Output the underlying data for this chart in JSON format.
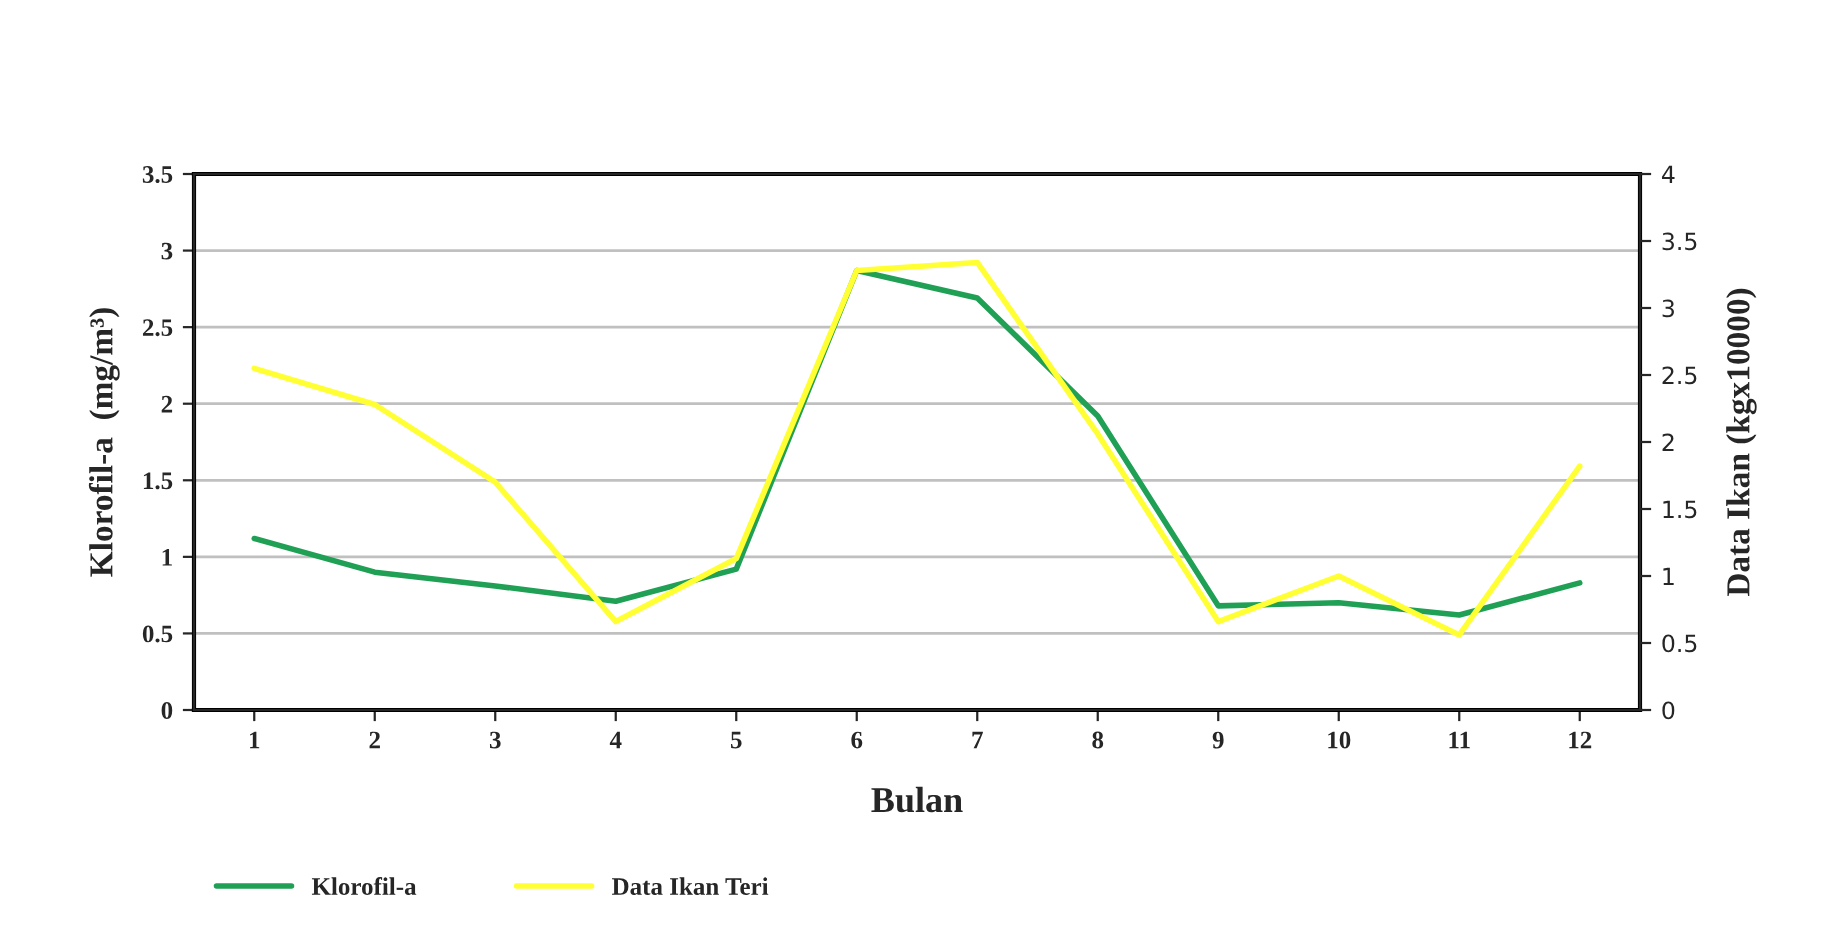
{
  "chart_data": {
    "type": "line",
    "xlabel": "Bulan",
    "ylabel": "Klorofil-a  (mg/m³)",
    "y2label": "Data Ikan (kgx10000)",
    "categories": [
      "1",
      "2",
      "3",
      "4",
      "5",
      "6",
      "7",
      "8",
      "9",
      "10",
      "11",
      "12"
    ],
    "series": [
      {
        "name": "Klorofil-a",
        "color": "#1fa055",
        "values": [
          1.12,
          0.9,
          0.81,
          0.71,
          0.92,
          2.87,
          2.69,
          1.92,
          0.68,
          0.7,
          0.62,
          0.83
        ]
      },
      {
        "name": "Data Ikan Teri",
        "color": "#ffff33",
        "axis": "y2",
        "values": [
          2.55,
          2.28,
          1.7,
          0.66,
          1.13,
          3.28,
          3.34,
          2.06,
          0.66,
          1.0,
          0.56,
          1.82
        ]
      }
    ],
    "ylim": [
      0,
      3.5
    ],
    "yticks": [
      0,
      0.5,
      1,
      1.5,
      2,
      2.5,
      3,
      3.5
    ],
    "y2lim": [
      0,
      4
    ],
    "y2ticks": [
      0,
      0.5,
      1,
      1.5,
      2,
      2.5,
      3,
      3.5,
      4
    ],
    "grid": "y",
    "legend": "bottom left",
    "marker": "none",
    "line_style": "solid"
  }
}
